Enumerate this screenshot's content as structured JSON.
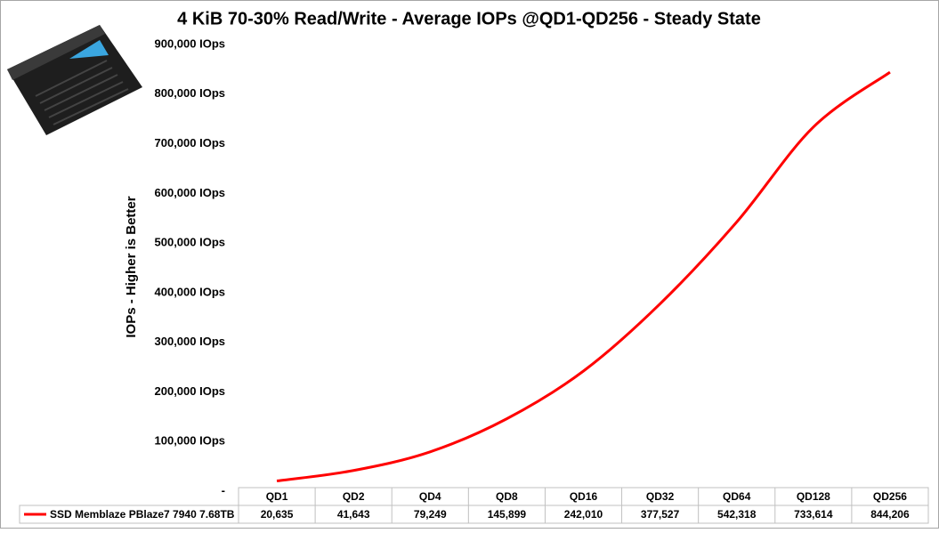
{
  "chart_data": {
    "type": "line",
    "title": "4 KiB 70-30% Read/Write - Average IOPs @QD1-QD256 - Steady State",
    "y_label": "IOPs  -  Higher is Better",
    "categories": [
      "QD1",
      "QD2",
      "QD4",
      "QD8",
      "QD16",
      "QD32",
      "QD64",
      "QD128",
      "QD256"
    ],
    "series": [
      {
        "name": "SSD Memblaze PBlaze7 7940 7.68TB",
        "color": "#ff0000",
        "values": [
          20635,
          41643,
          79249,
          145899,
          242010,
          377527,
          542318,
          733614,
          844206
        ],
        "value_labels": [
          "20,635",
          "41,643",
          "79,249",
          "145,899",
          "242,010",
          "377,527",
          "542,318",
          "733,614",
          "844,206"
        ]
      }
    ],
    "ylim": [
      0,
      900000
    ],
    "yticks": [
      {
        "value": 0,
        "label": "-"
      },
      {
        "value": 100000,
        "label": "100,000 IOps"
      },
      {
        "value": 200000,
        "label": "200,000 IOps"
      },
      {
        "value": 300000,
        "label": "300,000 IOps"
      },
      {
        "value": 400000,
        "label": "400,000 IOps"
      },
      {
        "value": 500000,
        "label": "500,000 IOps"
      },
      {
        "value": 600000,
        "label": "600,000 IOps"
      },
      {
        "value": 700000,
        "label": "700,000 IOps"
      },
      {
        "value": 800000,
        "label": "800,000 IOps"
      },
      {
        "value": 900000,
        "label": "900,000 IOps"
      }
    ],
    "grid": false,
    "smooth": true
  }
}
